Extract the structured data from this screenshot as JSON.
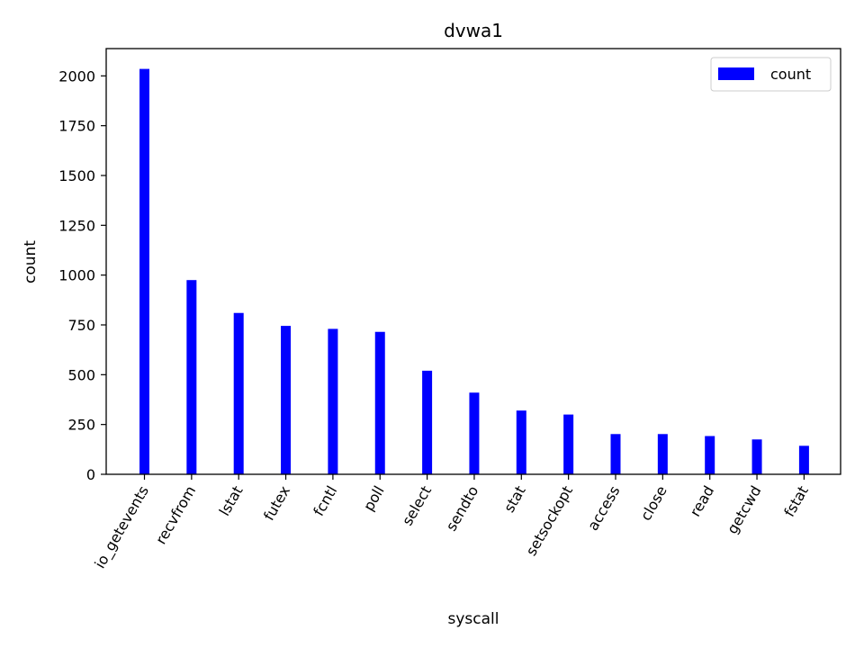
{
  "chart_data": {
    "type": "bar",
    "title": "dvwa1",
    "xlabel": "syscall",
    "ylabel": "count",
    "categories": [
      "io_getevents",
      "recvfrom",
      "lstat",
      "futex",
      "fcntl",
      "poll",
      "select",
      "sendto",
      "stat",
      "setsockopt",
      "access",
      "close",
      "read",
      "getcwd",
      "fstat"
    ],
    "series": [
      {
        "name": "count",
        "color": "#0000ff",
        "values": [
          2035,
          975,
          810,
          745,
          730,
          715,
          520,
          410,
          320,
          300,
          202,
          202,
          192,
          175,
          143
        ]
      }
    ],
    "ylim": [
      0,
      2137
    ],
    "yticks": [
      0,
      250,
      500,
      750,
      1000,
      1250,
      1500,
      1750,
      2000
    ],
    "grid": false,
    "legend_position": "top-right"
  }
}
